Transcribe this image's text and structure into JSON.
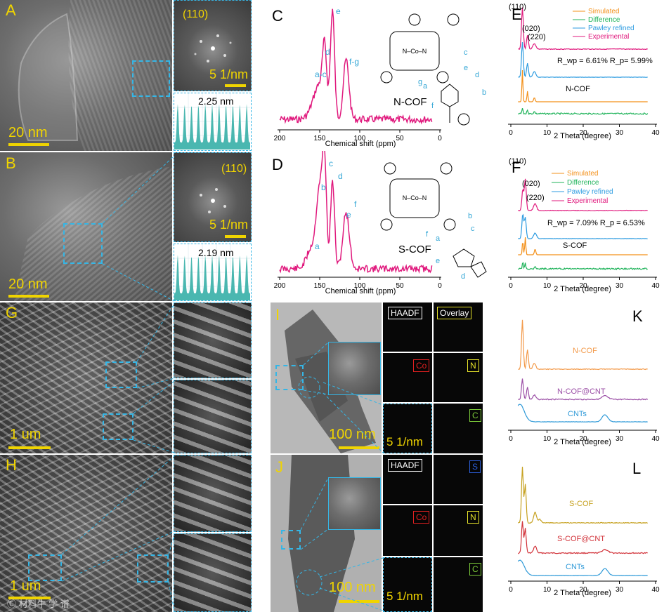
{
  "panels": {
    "A": {
      "letter": "A",
      "scale": "20 nm",
      "fft_label": "(110)",
      "fft_scale": "5 1/nm",
      "spacing": "2.25 nm"
    },
    "B": {
      "letter": "B",
      "scale": "20 nm",
      "fft_label": "(110)",
      "fft_scale": "5 1/nm",
      "spacing": "2.19 nm"
    },
    "C": {
      "letter": "C",
      "xlabel": "Chemical shift (ppm)",
      "ticks": [
        "200",
        "150",
        "100",
        "50",
        "0"
      ],
      "peaks": [
        "a-c",
        "e",
        "d",
        "f-g"
      ],
      "mol": "N-COF",
      "struct_labels": [
        "c",
        "e",
        "d",
        "a",
        "b",
        "f",
        "g"
      ],
      "metal": "N–Co–N"
    },
    "D": {
      "letter": "D",
      "xlabel": "Chemical shift (ppm)",
      "ticks": [
        "200",
        "150",
        "100",
        "50",
        "0"
      ],
      "peaks": [
        "c",
        "d",
        "b",
        "f",
        "e",
        "a"
      ],
      "mol": "S-COF",
      "struct_labels": [
        "b",
        "c",
        "a",
        "e",
        "d",
        "f"
      ],
      "metal": "N–Co–N"
    },
    "E": {
      "letter": "E",
      "xlabel": "2 Theta (degree)",
      "ticks": [
        "0",
        "10",
        "20",
        "30",
        "40"
      ],
      "hkl": [
        "(110)",
        "(020)",
        "(220)"
      ],
      "legend": [
        "Simulated",
        "Difference",
        "Pawley refined",
        "Experimental"
      ],
      "rwp": "R_wp = 6.61% R_p= 5.99%",
      "name": "N-COF"
    },
    "F": {
      "letter": "F",
      "xlabel": "2 Theta (degree)",
      "ticks": [
        "0",
        "10",
        "20",
        "30",
        "40"
      ],
      "hkl": [
        "(110)",
        "(020)",
        "(220)"
      ],
      "legend": [
        "Simulated",
        "Difference",
        "Pawley refined",
        "Experimental"
      ],
      "rwp": "R_wp = 7.09% R_p = 6.53%",
      "name": "S-COF"
    },
    "G": {
      "letter": "G",
      "scale": "1 um"
    },
    "H": {
      "letter": "H",
      "scale": "1 um",
      "watermark": "Ⓒ  材料牛 学 谱"
    },
    "I": {
      "letter": "I",
      "scale": "100 nm",
      "saed_scale": "5 1/nm",
      "maps": [
        "HAADF",
        "Overlay",
        "Co",
        "N",
        "C"
      ]
    },
    "J": {
      "letter": "J",
      "scale": "100 nm",
      "saed_scale": "5 1/nm",
      "maps": [
        "HAADF",
        "S",
        "Co",
        "N",
        "C"
      ]
    },
    "K": {
      "letter": "K",
      "xlabel": "2 Theta (degree)",
      "ticks": [
        "0",
        "10",
        "20",
        "30",
        "40"
      ],
      "series": [
        "N-COF",
        "N-COF@CNT",
        "CNTs"
      ]
    },
    "L": {
      "letter": "L",
      "xlabel": "2 Theta (degree)",
      "ticks": [
        "0",
        "10",
        "20",
        "30",
        "40"
      ],
      "series": [
        "S-COF",
        "S-COF@CNT",
        "CNTs"
      ]
    }
  },
  "colors": {
    "accent": "#35b6e6",
    "scale": "#f0d400",
    "nmr": "#e0197d",
    "simulated": "#f39019",
    "difference": "#1fb35a",
    "pawley": "#2c9be0",
    "experimental": "#e0197d",
    "ncof": "#f39a4a",
    "ncofcnt": "#9b4fa6",
    "cnt": "#2f9ad8",
    "scof": "#c6a120",
    "scofcnt": "#d2343b",
    "co": "#e02020",
    "n": "#e6e22a",
    "c": "#7bc93a",
    "s": "#2c5ed8"
  }
}
